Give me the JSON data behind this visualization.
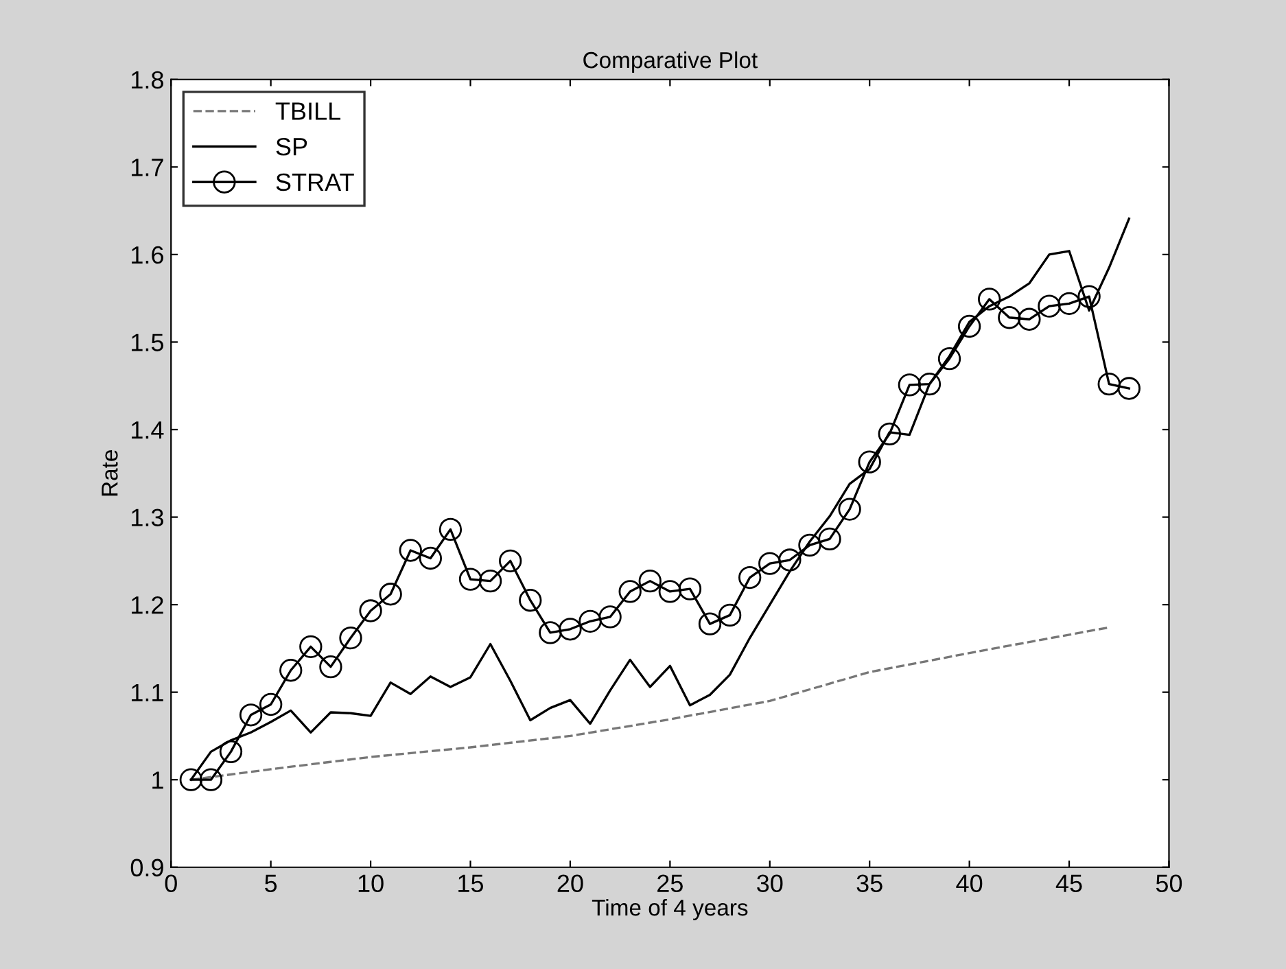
{
  "chart_data": {
    "type": "line",
    "title": "Comparative Plot",
    "xlabel": "Time of 4 years",
    "ylabel": "Rate",
    "xlim": [
      0,
      50
    ],
    "xticks": [
      0,
      5,
      10,
      15,
      20,
      25,
      30,
      35,
      40,
      45,
      50
    ],
    "ylim": [
      0.9,
      1.8
    ],
    "yticks": [
      0.9,
      {
        "value": 1,
        "label": "1"
      },
      1.1,
      1.2,
      1.3,
      1.4,
      1.5,
      1.6,
      1.7,
      1.8
    ],
    "grid": false,
    "legend": "top left",
    "series": [
      {
        "name": "TBILL",
        "color": "#777777",
        "line_style": "dashed",
        "marker": "none",
        "x": [
          1,
          5,
          10,
          15,
          20,
          25,
          30,
          35,
          41,
          47
        ],
        "values": [
          1.0,
          1.012,
          1.026,
          1.037,
          1.05,
          1.069,
          1.09,
          1.123,
          1.149,
          1.174
        ]
      },
      {
        "name": "SP",
        "color": "#000000",
        "line_style": "solid",
        "marker": "none",
        "x": [
          1,
          2,
          3,
          4,
          5,
          6,
          7,
          8,
          9,
          10,
          11,
          12,
          13,
          14,
          15,
          16,
          17,
          18,
          19,
          20,
          21,
          22,
          23,
          24,
          25,
          26,
          27,
          28,
          29,
          30,
          31,
          32,
          33,
          34,
          35,
          36,
          37,
          38,
          39,
          40,
          41,
          42,
          43,
          44,
          45,
          46,
          47,
          48
        ],
        "values": [
          1.0,
          1.032,
          1.045,
          1.054,
          1.066,
          1.079,
          1.054,
          1.077,
          1.076,
          1.073,
          1.111,
          1.098,
          1.118,
          1.106,
          1.117,
          1.155,
          1.113,
          1.068,
          1.082,
          1.091,
          1.064,
          1.102,
          1.137,
          1.106,
          1.13,
          1.085,
          1.097,
          1.12,
          1.162,
          1.2,
          1.238,
          1.272,
          1.301,
          1.338,
          1.355,
          1.397,
          1.394,
          1.452,
          1.484,
          1.523,
          1.541,
          1.552,
          1.567,
          1.6,
          1.604,
          1.536,
          1.585,
          1.641
        ]
      },
      {
        "name": "STRAT",
        "color": "#000000",
        "line_style": "solid",
        "marker": "circle",
        "x": [
          1,
          2,
          3,
          4,
          5,
          6,
          7,
          8,
          9,
          10,
          11,
          12,
          13,
          14,
          15,
          16,
          17,
          18,
          19,
          20,
          21,
          22,
          23,
          24,
          25,
          26,
          27,
          28,
          29,
          30,
          31,
          32,
          33,
          34,
          35,
          36,
          37,
          38,
          39,
          40,
          41,
          42,
          43,
          44,
          45,
          46,
          47,
          48
        ],
        "values": [
          1.0,
          1.0,
          1.032,
          1.074,
          1.086,
          1.125,
          1.152,
          1.129,
          1.162,
          1.193,
          1.212,
          1.262,
          1.253,
          1.286,
          1.229,
          1.227,
          1.25,
          1.205,
          1.168,
          1.172,
          1.181,
          1.186,
          1.215,
          1.227,
          1.215,
          1.218,
          1.178,
          1.188,
          1.231,
          1.247,
          1.251,
          1.268,
          1.275,
          1.309,
          1.363,
          1.395,
          1.451,
          1.452,
          1.481,
          1.518,
          1.549,
          1.528,
          1.526,
          1.541,
          1.544,
          1.552,
          1.452,
          1.447
        ]
      }
    ]
  }
}
